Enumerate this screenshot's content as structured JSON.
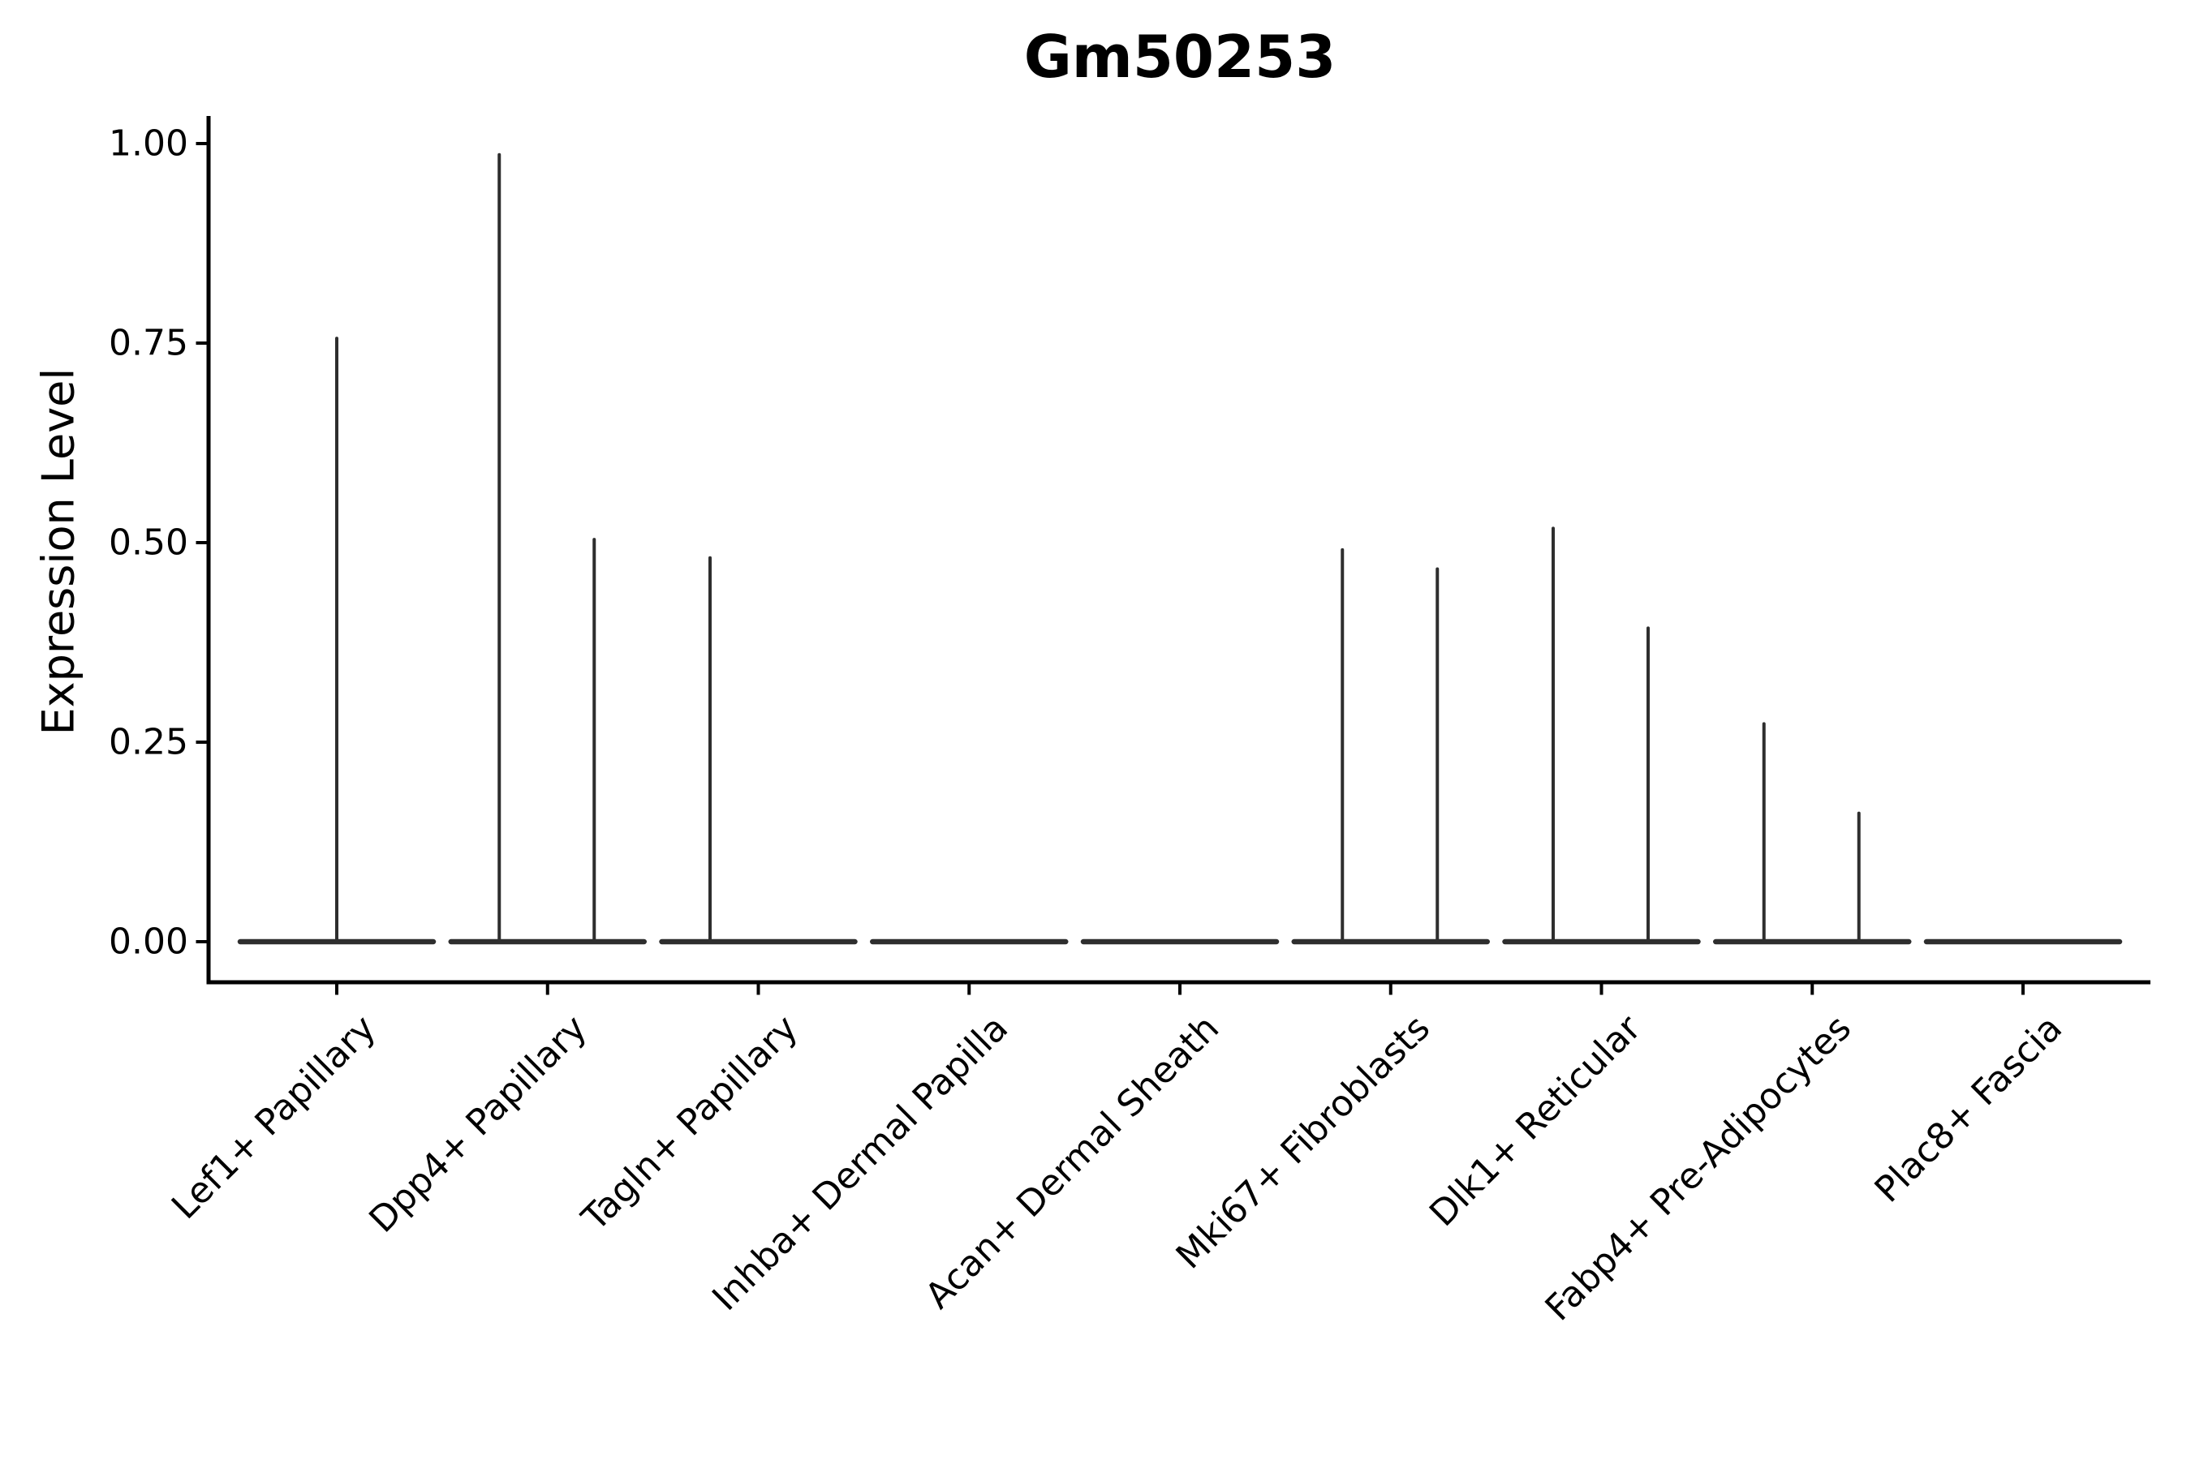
{
  "figure": {
    "title": "Gm50253"
  },
  "axes": {
    "ylabel": "Expression Level",
    "yticklabels": [
      "0.00",
      "0.25",
      "0.50",
      "0.75",
      "1.00"
    ]
  },
  "chart_data": {
    "type": "violin",
    "title": "Gm50253",
    "xlabel": "",
    "ylabel": "Expression Level",
    "ylim": [
      -0.05,
      1.03
    ],
    "yticks": [
      0.0,
      0.25,
      0.5,
      0.75,
      1.0
    ],
    "grid": false,
    "legend": false,
    "baseline_value": 0.0,
    "categories": [
      "Lef1+ Papillary",
      "Dpp4+ Papillary",
      "Tagln+ Papillary",
      "Inhba+ Dermal Papilla",
      "Acan+ Dermal Sheath",
      "Mki67+ Fibroblasts",
      "Dlk1+ Reticular",
      "Fabp4+ Pre-Adipocytes",
      "Plac8+ Fascia"
    ],
    "violins": [
      {
        "category": "Lef1+ Papillary",
        "spikes": [
          {
            "slot": "center",
            "max": 0.758
          }
        ]
      },
      {
        "category": "Dpp4+ Papillary",
        "spikes": [
          {
            "slot": "left",
            "max": 0.988
          },
          {
            "slot": "right",
            "max": 0.506
          }
        ]
      },
      {
        "category": "Tagln+ Papillary",
        "spikes": [
          {
            "slot": "left",
            "max": 0.483
          }
        ]
      },
      {
        "category": "Inhba+ Dermal Papilla",
        "spikes": []
      },
      {
        "category": "Acan+ Dermal Sheath",
        "spikes": []
      },
      {
        "category": "Mki67+ Fibroblasts",
        "spikes": [
          {
            "slot": "left",
            "max": 0.493
          },
          {
            "slot": "right",
            "max": 0.469
          }
        ]
      },
      {
        "category": "Dlk1+ Reticular",
        "spikes": [
          {
            "slot": "left",
            "max": 0.52
          },
          {
            "slot": "right",
            "max": 0.395
          }
        ]
      },
      {
        "category": "Fabp4+ Pre-Adipocytes",
        "spikes": [
          {
            "slot": "left",
            "max": 0.275
          },
          {
            "slot": "right",
            "max": 0.163
          }
        ]
      },
      {
        "category": "Plac8+ Fascia",
        "spikes": []
      }
    ]
  },
  "colors": {
    "violin_line": "#2e2e2e",
    "axis": "#000000",
    "text": "#000000",
    "background": "#ffffff"
  }
}
